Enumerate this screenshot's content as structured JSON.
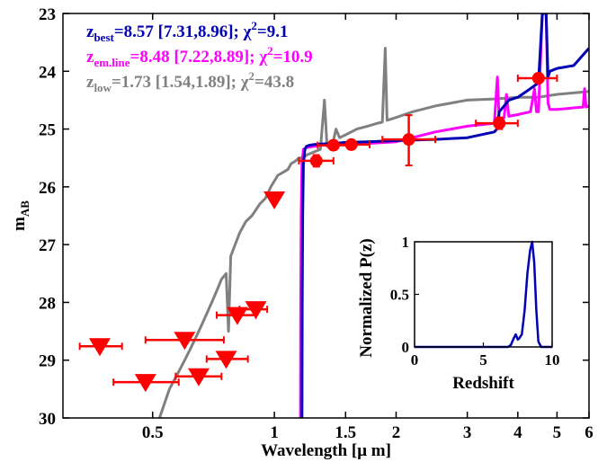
{
  "chart_data": {
    "type": "line",
    "xlabel": "Wavelength [μ m]",
    "ylabel": "m",
    "ylabel_sub": "AB",
    "xscale": "log",
    "xlim": [
      0.3,
      6
    ],
    "ylim": [
      30,
      23
    ],
    "xticks": [
      0.5,
      1,
      1.5,
      2,
      3,
      4,
      5,
      6
    ],
    "xtick_labels": [
      "0.5",
      "1",
      "1.5",
      "2",
      "3",
      "4",
      "5",
      "6"
    ],
    "yticks": [
      23,
      24,
      25,
      26,
      27,
      28,
      29,
      30
    ],
    "ytick_labels": [
      "23",
      "24",
      "25",
      "26",
      "27",
      "28",
      "29",
      "30"
    ],
    "legend": [
      {
        "prefix": "z",
        "sub": "best",
        "text": "=8.57 [7.31,8.96]; χ",
        "sup": "2",
        "suffix": "=9.1",
        "color": "#0000b4"
      },
      {
        "prefix": "z",
        "sub": "em.line",
        "text": "=8.48 [7.22,8.89]; χ",
        "sup": "2",
        "suffix": "=10.9",
        "color": "#ff00ff"
      },
      {
        "prefix": "z",
        "sub": "low",
        "text": "=1.73 [1.54,1.89]; χ",
        "sup": "2",
        "suffix": "=43.8",
        "color": "#808080"
      }
    ],
    "series": [
      {
        "name": "zbest",
        "color": "#0000b4",
        "x": [
          1.17,
          1.172,
          1.175,
          1.18,
          1.19,
          1.2,
          1.22,
          1.25,
          1.3,
          1.4,
          1.5,
          1.7,
          2.0,
          2.5,
          3.0,
          3.5,
          3.55,
          3.6,
          3.7,
          3.8,
          4.0,
          4.2,
          4.5,
          4.6,
          4.65,
          4.7,
          4.75,
          4.8,
          5.0,
          5.5,
          6.0
        ],
        "y": [
          30,
          28,
          26.5,
          25.6,
          25.35,
          25.3,
          25.28,
          25.27,
          25.26,
          25.25,
          25.23,
          25.22,
          25.2,
          25.18,
          25.15,
          25.05,
          25.0,
          24.7,
          24.6,
          24.5,
          24.45,
          24.35,
          24.2,
          23.0,
          23.0,
          23.0,
          24.1,
          24.0,
          23.95,
          23.9,
          23.6
        ]
      },
      {
        "name": "zem.line",
        "color": "#ff00ff",
        "x": [
          1.16,
          1.162,
          1.165,
          1.17,
          1.18,
          1.2,
          1.25,
          1.3,
          1.4,
          1.5,
          1.7,
          2.0,
          2.5,
          3.0,
          3.5,
          3.56,
          3.6,
          3.7,
          3.75,
          3.8,
          4.0,
          4.3,
          4.4,
          4.45,
          4.5,
          4.6,
          4.65,
          4.7,
          4.75,
          4.8,
          5.0,
          5.8,
          5.85,
          5.9,
          6.0
        ],
        "y": [
          30,
          28,
          26.5,
          25.6,
          25.35,
          25.32,
          25.3,
          25.28,
          25.27,
          25.26,
          25.25,
          25.22,
          25.05,
          24.95,
          24.9,
          24.1,
          24.88,
          24.8,
          24.4,
          24.78,
          24.75,
          24.7,
          24.3,
          24.7,
          24.7,
          23.0,
          23.0,
          23.0,
          24.55,
          24.66,
          24.66,
          24.62,
          24.3,
          24.62,
          24.6
        ]
      },
      {
        "name": "zlow",
        "color": "#808080",
        "x": [
          0.52,
          0.55,
          0.58,
          0.6,
          0.62,
          0.64,
          0.66,
          0.68,
          0.7,
          0.72,
          0.74,
          0.76,
          0.77,
          0.78,
          0.8,
          0.82,
          0.85,
          0.88,
          0.9,
          0.92,
          0.95,
          0.98,
          1.0,
          1.02,
          1.05,
          1.08,
          1.1,
          1.13,
          1.15,
          1.18,
          1.2,
          1.25,
          1.3,
          1.33,
          1.35,
          1.37,
          1.4,
          1.42,
          1.45,
          1.5,
          1.6,
          1.7,
          1.8,
          1.85,
          1.88,
          1.9,
          2.0,
          2.2,
          2.5,
          3.0,
          3.5,
          4.0,
          4.5,
          5.0,
          6.0
        ],
        "y": [
          30,
          29.5,
          29.2,
          29.0,
          28.8,
          28.6,
          28.4,
          28.2,
          28.0,
          27.8,
          27.6,
          27.5,
          28.5,
          27.2,
          27.0,
          26.8,
          26.6,
          26.5,
          26.4,
          26.3,
          26.2,
          26.0,
          25.9,
          25.8,
          25.75,
          25.7,
          25.6,
          25.55,
          25.5,
          25.5,
          25.45,
          25.4,
          25.35,
          24.5,
          25.3,
          25.25,
          25.2,
          25.0,
          25.15,
          25.1,
          25.0,
          24.95,
          24.9,
          24.88,
          23.6,
          24.85,
          24.8,
          24.7,
          24.6,
          24.5,
          24.48,
          24.45,
          24.45,
          24.4,
          24.35
        ]
      }
    ],
    "detections": [
      {
        "x": 1.27,
        "y": 25.55,
        "xerr": [
          1.15,
          1.4
        ],
        "yerr": [
          0.1,
          0.1
        ]
      },
      {
        "x": 1.4,
        "y": 25.28,
        "xerr": [
          1.28,
          1.52
        ],
        "yerr": [
          0.08,
          0.08
        ]
      },
      {
        "x": 1.55,
        "y": 25.27,
        "xerr": [
          1.38,
          1.72
        ],
        "yerr": [
          0.08,
          0.08
        ]
      },
      {
        "x": 2.15,
        "y": 25.18,
        "xerr": [
          1.85,
          2.5
        ],
        "yerr": [
          0.42,
          0.45
        ]
      },
      {
        "x": 3.6,
        "y": 24.9,
        "xerr": [
          3.15,
          4.0
        ],
        "yerr": [
          0.1,
          0.1
        ]
      },
      {
        "x": 4.5,
        "y": 24.12,
        "xerr": [
          4.0,
          5.0
        ],
        "yerr": [
          0.08,
          0.08
        ]
      }
    ],
    "upper_limits": [
      {
        "x": 0.37,
        "y": 28.76,
        "xerr": [
          0.33,
          0.42
        ]
      },
      {
        "x": 0.48,
        "y": 29.38,
        "xerr": [
          0.4,
          0.58
        ]
      },
      {
        "x": 0.6,
        "y": 28.65,
        "xerr": [
          0.48,
          0.75
        ]
      },
      {
        "x": 0.65,
        "y": 29.28,
        "xerr": [
          0.57,
          0.74
        ]
      },
      {
        "x": 0.76,
        "y": 28.98,
        "xerr": [
          0.68,
          0.86
        ]
      },
      {
        "x": 0.81,
        "y": 28.22,
        "xerr": [
          0.72,
          0.9
        ]
      },
      {
        "x": 0.9,
        "y": 28.12,
        "xerr": [
          0.82,
          0.96
        ]
      },
      {
        "x": 1.0,
        "y": 26.22,
        "xerr": [
          1.0,
          1.0
        ]
      }
    ],
    "marker_color": "#ff0000",
    "inset": {
      "type": "line",
      "xlabel": "Redshift",
      "ylabel": "Normalized P(z)",
      "xlim": [
        0,
        10
      ],
      "ylim": [
        0,
        1
      ],
      "xticks": [
        0,
        5,
        10
      ],
      "xtick_labels": [
        "0",
        "5",
        "10"
      ],
      "yticks": [
        0,
        0.5,
        1
      ],
      "ytick_labels": [
        "0",
        "0.5",
        "1"
      ],
      "color": "#0000b4",
      "x": [
        0,
        6.8,
        7.0,
        7.2,
        7.35,
        7.5,
        7.6,
        7.8,
        8.0,
        8.2,
        8.4,
        8.55,
        8.7,
        8.85,
        9.0,
        9.2,
        10
      ],
      "y": [
        0,
        0,
        0.02,
        0.08,
        0.12,
        0.07,
        0.08,
        0.12,
        0.35,
        0.7,
        0.92,
        1.0,
        0.8,
        0.35,
        0.05,
        0,
        0
      ]
    }
  }
}
